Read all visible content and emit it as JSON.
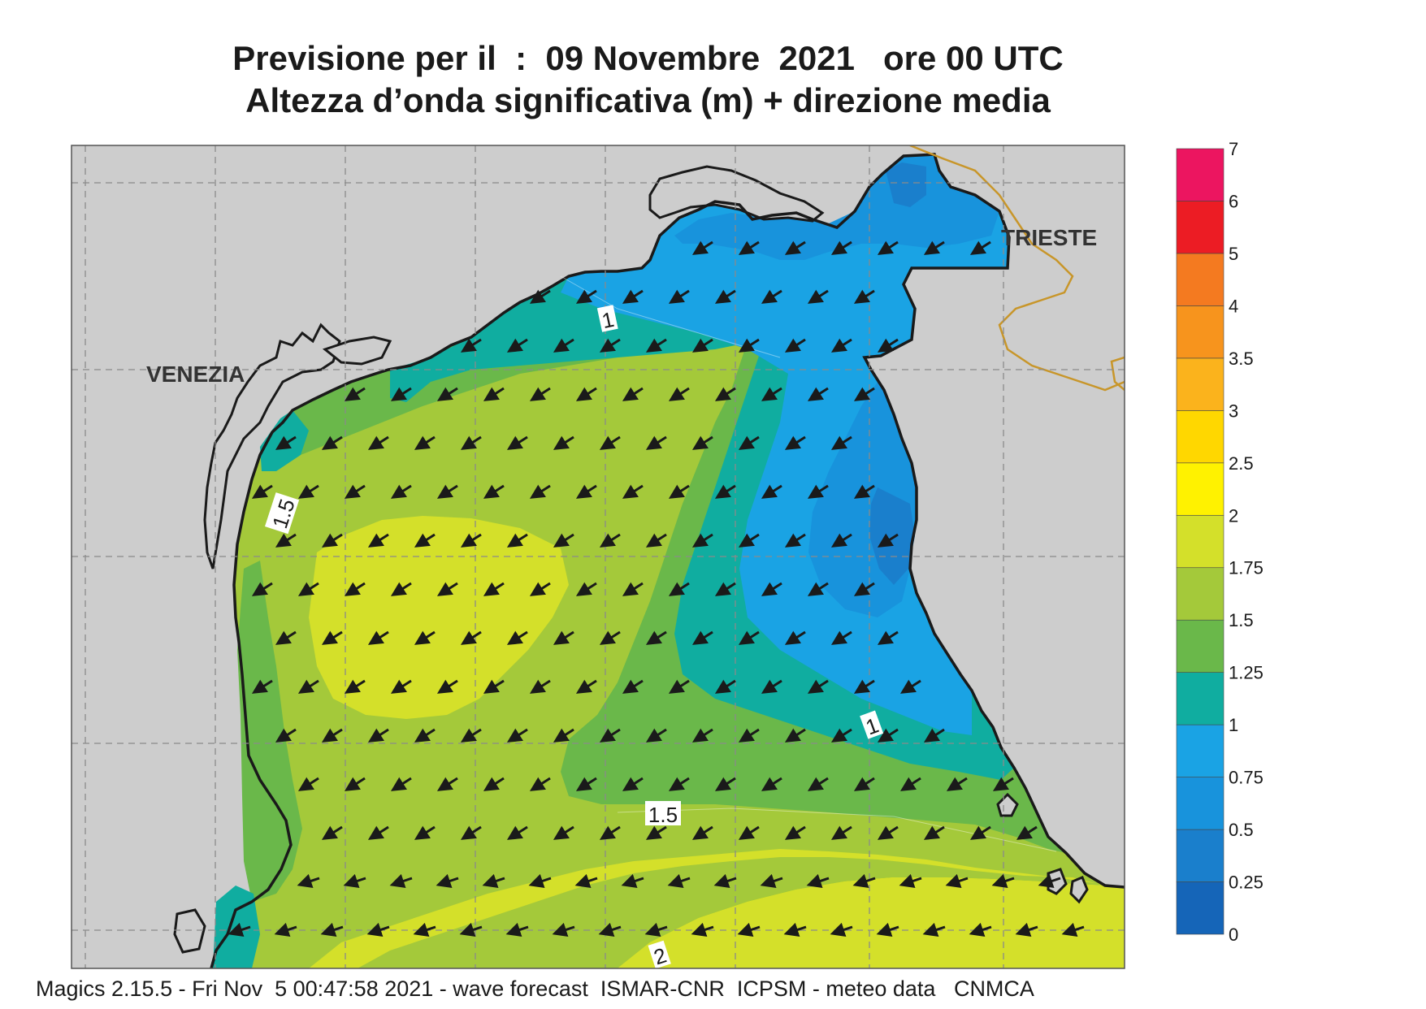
{
  "title": {
    "line1": "Previsione per il  :  09 Novembre  2021   ore 00 UTC",
    "line2": "Altezza d’onda significativa (m) + direzione media"
  },
  "footer": "Magics 2.15.5 - Fri Nov  5 00:47:58 2021 - wave forecast  ISMAR-CNR  ICPSM - meteo data   CNMCA",
  "places": {
    "venezia": "VENEZIA",
    "trieste": "TRIESTE"
  },
  "colorbar": {
    "labels": [
      "0",
      "0.25",
      "0.5",
      "0.75",
      "1",
      "1.25",
      "1.5",
      "1.75",
      "2",
      "2.5",
      "3",
      "3.5",
      "4",
      "5",
      "6",
      "7"
    ],
    "colors": [
      "#1565b8",
      "#1a7fcc",
      "#1893dc",
      "#1aa3e4",
      "#10ada0",
      "#6ab84a",
      "#a4c93a",
      "#d4e02a",
      "#fff200",
      "#ffd700",
      "#fbb31c",
      "#f7941d",
      "#f47a20",
      "#ec1c24",
      "#ec1560"
    ]
  },
  "contour_labels": {
    "c1_top": "1",
    "c15_left": "1.5",
    "c1_right": "1",
    "c15_bottom": "1.5",
    "c2_bottom": "2"
  },
  "colors": {
    "land": "#cdcdcd",
    "coast": "#1a1a1a",
    "border": "#c8962a",
    "grid": "#8a8a8a",
    "arrow": "#1a1a1a"
  },
  "arrow_field_direction": "towards south-west"
}
